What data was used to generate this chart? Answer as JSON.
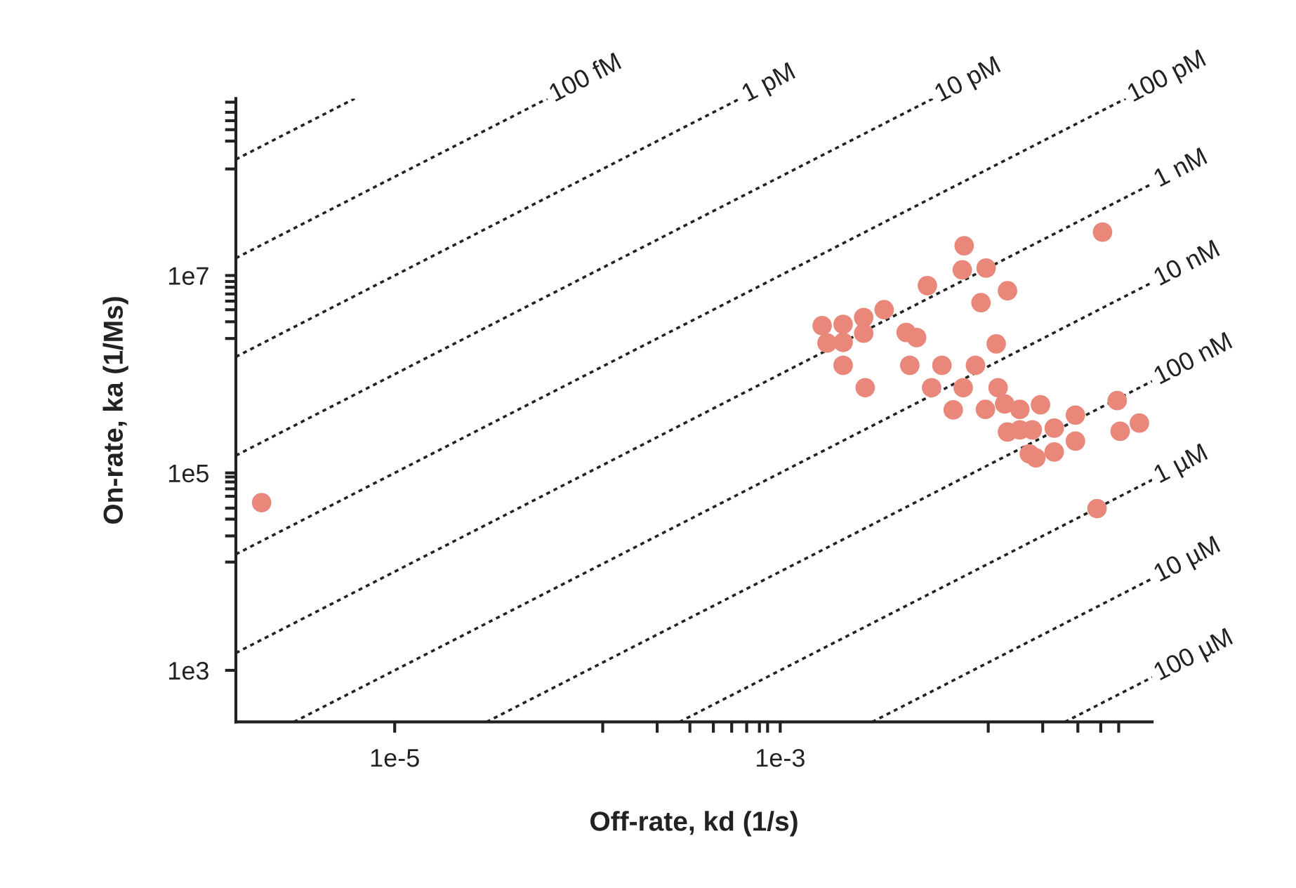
{
  "chart_data": {
    "type": "scatter",
    "xlabel": "Off-rate, kd (1/s)",
    "ylabel": "On-rate, ka (1/Ms)",
    "log": "xy",
    "line_style": "dashed",
    "xlim": [
      1.5e-06,
      0.085
    ],
    "ylim": [
      300,
      620000000.0
    ],
    "xticks": [
      {
        "value": 1e-05,
        "label": "1e-5"
      },
      {
        "value": 0.001,
        "label": "1e-3"
      },
      {
        "value": 0.00012,
        "label": null
      },
      {
        "value": 0.00023,
        "label": null
      },
      {
        "value": 0.00034,
        "label": null
      },
      {
        "value": 0.00045,
        "label": null
      },
      {
        "value": 0.00056,
        "label": null
      },
      {
        "value": 0.00067,
        "label": null
      },
      {
        "value": 0.00078,
        "label": null
      },
      {
        "value": 0.00086,
        "label": null
      },
      {
        "value": 0.012,
        "label": null
      },
      {
        "value": 0.023,
        "label": null
      },
      {
        "value": 0.035,
        "label": null
      },
      {
        "value": 0.046,
        "label": null
      },
      {
        "value": 0.057,
        "label": null
      }
    ],
    "yticks": [
      {
        "value": 1000.0,
        "label": "1e3"
      },
      {
        "value": 100000.0,
        "label": "1e5"
      },
      {
        "value": 10000000.0,
        "label": "1e7"
      },
      {
        "value": 12500.0,
        "label": null
      },
      {
        "value": 23000.0,
        "label": null
      },
      {
        "value": 34000.0,
        "label": null
      },
      {
        "value": 44000.0,
        "label": null
      },
      {
        "value": 58000.0,
        "label": null
      },
      {
        "value": 69000.0,
        "label": null
      },
      {
        "value": 81000.0,
        "label": null
      },
      {
        "value": 91000.0,
        "label": null
      },
      {
        "value": 2300000.0,
        "label": null
      },
      {
        "value": 3400000.0,
        "label": null
      },
      {
        "value": 4500000.0,
        "label": null
      },
      {
        "value": 5500000.0,
        "label": null
      },
      {
        "value": 6500000.0,
        "label": null
      },
      {
        "value": 7600000.0,
        "label": null
      },
      {
        "value": 8700000.0,
        "label": null
      },
      {
        "value": 120000000.0,
        "label": null
      },
      {
        "value": 230000000.0,
        "label": null
      },
      {
        "value": 300000000.0,
        "label": null
      },
      {
        "value": 370000000.0,
        "label": null
      },
      {
        "value": 450000000.0,
        "label": null
      },
      {
        "value": 570000000.0,
        "label": null
      }
    ],
    "series": [
      {
        "type": "line",
        "color": "#222222",
        "x": [
          1.5e-06,
          6.2e-06
        ],
        "values": [
          150000000.0,
          620000000.0
        ]
      },
      {
        "type": "line",
        "name": "100 fM",
        "color": "#222222",
        "x": [
          1.5e-06,
          6.2e-05
        ],
        "values": [
          15000000.0,
          620000000.0
        ]
      },
      {
        "type": "line",
        "name": "1 pM",
        "color": "#222222",
        "x": [
          1.5e-06,
          0.00062
        ],
        "values": [
          1500000.0,
          620000000.0
        ]
      },
      {
        "type": "line",
        "name": "10 pM",
        "color": "#222222",
        "x": [
          1.5e-06,
          0.0062
        ],
        "values": [
          150000.0,
          620000000.0
        ]
      },
      {
        "type": "line",
        "name": "100 pM",
        "color": "#222222",
        "x": [
          1.5e-06,
          0.062
        ],
        "values": [
          15000.0,
          620000000.0
        ]
      },
      {
        "type": "line",
        "name": "1 nM",
        "color": "#222222",
        "x": [
          1.5e-06,
          0.085
        ],
        "values": [
          1500.0,
          85000000.0
        ]
      },
      {
        "type": "line",
        "name": "10 nM",
        "color": "#222222",
        "x": [
          3e-06,
          0.085
        ],
        "values": [
          300,
          8500000.0
        ]
      },
      {
        "type": "line",
        "name": "100 nM",
        "color": "#222222",
        "x": [
          3e-05,
          0.085
        ],
        "values": [
          300,
          850000.0
        ]
      },
      {
        "type": "line",
        "name": "1 µM",
        "color": "#222222",
        "x": [
          0.0003,
          0.085
        ],
        "values": [
          300,
          85000.0
        ]
      },
      {
        "type": "line",
        "name": "10 µM",
        "color": "#222222",
        "x": [
          0.003,
          0.085
        ],
        "values": [
          300,
          8500.0
        ]
      },
      {
        "type": "line",
        "name": "100 µM",
        "color": "#222222",
        "x": [
          0.03,
          0.085
        ],
        "values": [
          300,
          850
        ]
      },
      {
        "color": "#e8877a",
        "marker": "circle",
        "x": [
          2.04e-06,
          0.047,
          0.009,
          0.0088,
          0.0117,
          0.0058,
          0.0151,
          0.011,
          0.00165,
          0.00212,
          0.00271,
          0.00346,
          0.00175,
          0.00212,
          0.00271,
          0.0045,
          0.0051,
          0.0132,
          0.00212,
          0.0047,
          0.0069,
          0.0103,
          0.00276,
          0.0061,
          0.0089,
          0.0135,
          0.0079,
          0.0116,
          0.0146,
          0.0175,
          0.0224,
          0.034,
          0.0151,
          0.0175,
          0.0203,
          0.0264,
          0.034,
          0.0196,
          0.0212,
          0.0264,
          0.056,
          0.058,
          0.073,
          0.044
        ],
        "values": [
          50000.0,
          27500000.0,
          20000000.0,
          11400000.0,
          11900000.0,
          7900000.0,
          7000000.0,
          5300000.0,
          3100000.0,
          3200000.0,
          3750000.0,
          4500000.0,
          2070000.0,
          2100000.0,
          2600000.0,
          2650000.0,
          2350000.0,
          2030000.0,
          1230000.0,
          1230000.0,
          1230000.0,
          1230000.0,
          730000.0,
          730000.0,
          730000.0,
          730000.0,
          435000.0,
          440000.0,
          500000.0,
          440000.0,
          490000.0,
          385000.0,
          260000.0,
          273000.0,
          273000.0,
          284000.0,
          210000.0,
          156000.0,
          142000.0,
          163000.0,
          540000.0,
          264000.0,
          320000.0,
          43500.0
        ]
      }
    ]
  }
}
